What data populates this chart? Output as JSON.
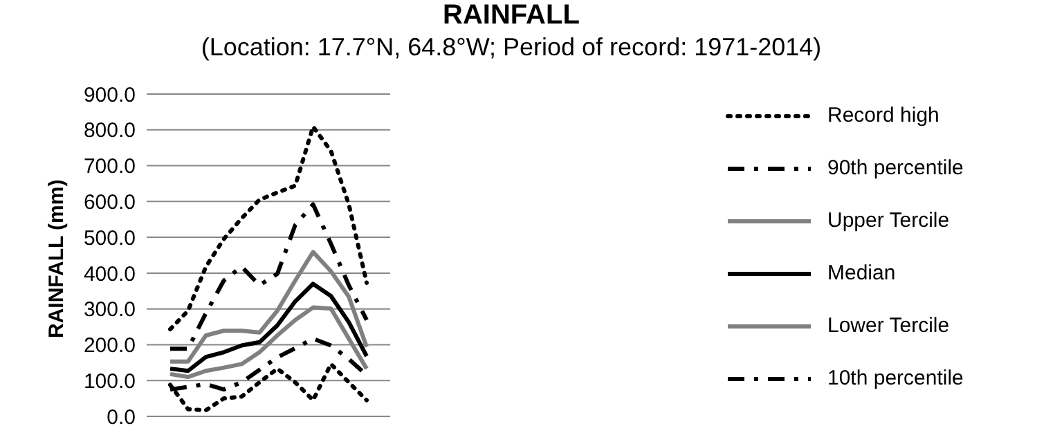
{
  "chart_data": {
    "type": "line",
    "title": "RAINFALL",
    "subtitle": "(Location: 17.7°N, 64.8°W; Period of record: 1971-2014)",
    "ylabel": "RAINFALL (mm)",
    "categories": [
      null,
      null,
      null,
      null,
      null,
      null,
      null,
      null,
      null,
      null,
      null,
      null
    ],
    "ylim": [
      0,
      900
    ],
    "yticks": [
      {
        "value": 0,
        "label": "0.0"
      },
      {
        "value": 100,
        "label": "100.0"
      },
      {
        "value": 200,
        "label": "200.0"
      },
      {
        "value": 300,
        "label": "300.0"
      },
      {
        "value": 400,
        "label": "400.0"
      },
      {
        "value": 500,
        "label": "500.0"
      },
      {
        "value": 600,
        "label": "600.0"
      },
      {
        "value": 700,
        "label": "700.0"
      },
      {
        "value": 800,
        "label": "800.0"
      },
      {
        "value": 900,
        "label": "900.0"
      }
    ],
    "grid": "y",
    "legend": "right",
    "marker": "none",
    "series": [
      {
        "name": "Record high",
        "color": "#000000",
        "line_style": "dotted",
        "values": [
          243,
          295,
          418,
          495,
          553,
          605,
          625,
          644,
          809,
          741,
          592,
          373
        ]
      },
      {
        "name": "90th percentile",
        "color": "#000000",
        "line_style": "dashed",
        "values": [
          189,
          189,
          288,
          379,
          418,
          366,
          398,
          534,
          592,
          482,
          366,
          269
        ]
      },
      {
        "name": "Upper Tercile",
        "color": "#808080",
        "line_style": "solid",
        "values": [
          153,
          153,
          226,
          239,
          239,
          234,
          295,
          379,
          459,
          405,
          334,
          194
        ]
      },
      {
        "name": "Median",
        "color": "#000000",
        "line_style": "solid",
        "values": [
          133,
          127,
          166,
          179,
          198,
          207,
          254,
          321,
          370,
          336,
          263,
          168
        ]
      },
      {
        "name": "Lower Tercile",
        "color": "#808080",
        "line_style": "solid",
        "values": [
          118,
          110,
          127,
          136,
          146,
          179,
          226,
          269,
          304,
          301,
          217,
          133
        ]
      },
      {
        "name": "10th percentile",
        "color": "#000000",
        "line_style": "dashed",
        "values": [
          75,
          82,
          90,
          75,
          95,
          130,
          165,
          190,
          217,
          198,
          160,
          115
        ]
      },
      {
        "color": "#000000",
        "line_style": "dotted",
        "values": [
          88,
          20,
          17,
          50,
          55,
          95,
          133,
          95,
          45,
          146,
          95,
          45
        ]
      }
    ]
  }
}
